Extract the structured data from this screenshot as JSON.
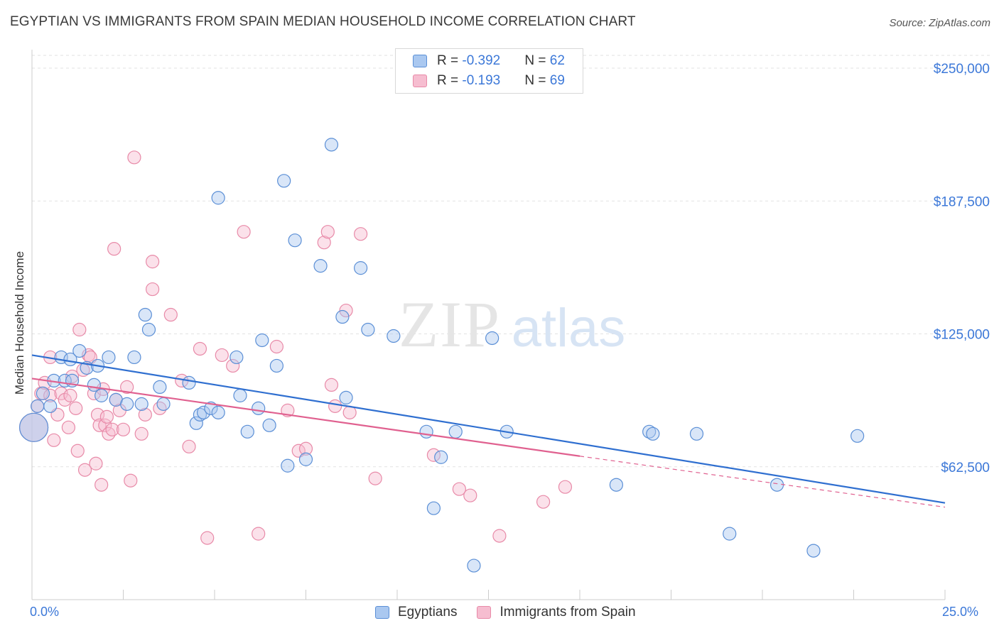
{
  "title": "EGYPTIAN VS IMMIGRANTS FROM SPAIN MEDIAN HOUSEHOLD INCOME CORRELATION CHART",
  "source": "Source: ZipAtlas.com",
  "watermark": {
    "zip": "ZIP",
    "atlas": "atlas"
  },
  "legend": {
    "rows": [
      {
        "r_label": "R = ",
        "r_value": "-0.392",
        "n_label": "N = ",
        "n_value": "62"
      },
      {
        "r_label": "R = ",
        "r_value": "-0.193",
        "n_label": "N = ",
        "n_value": "69"
      }
    ]
  },
  "colors": {
    "blue_fill": "#aac8f0",
    "blue_stroke": "#5b8fd6",
    "blue_line": "#2f6fd0",
    "pink_fill": "#f6bdd0",
    "pink_stroke": "#e88aa8",
    "pink_line": "#e0608f",
    "axis_label": "#3c78d8",
    "grid": "#e2e2e2"
  },
  "chart_data": {
    "type": "scatter",
    "xlabel": "",
    "ylabel": "Median Household Income",
    "xlim": [
      0,
      25
    ],
    "ylim": [
      0,
      262500
    ],
    "x_tick_labels": [
      "0.0%",
      "25.0%"
    ],
    "y_ticks": [
      62500,
      125000,
      187500,
      250000
    ],
    "y_tick_labels": [
      "$62,500",
      "$125,000",
      "$187,500",
      "$250,000"
    ],
    "grid": true,
    "legend_position": "top-center",
    "series": [
      {
        "name": "Egyptians",
        "color": "#5b8fd6",
        "trend": {
          "x0": 0,
          "y0": 115000,
          "x1": 25,
          "y1": 45500,
          "dashed_from": null
        },
        "points": [
          [
            0.15,
            91000
          ],
          [
            0.3,
            97000
          ],
          [
            0.5,
            91000
          ],
          [
            0.6,
            103000
          ],
          [
            0.8,
            114000
          ],
          [
            0.9,
            103000
          ],
          [
            1.05,
            113000
          ],
          [
            1.1,
            103000
          ],
          [
            1.3,
            117000
          ],
          [
            1.5,
            109000
          ],
          [
            1.7,
            101000
          ],
          [
            1.8,
            110000
          ],
          [
            1.9,
            96000
          ],
          [
            2.1,
            114000
          ],
          [
            2.3,
            94000
          ],
          [
            2.6,
            92000
          ],
          [
            2.8,
            114000
          ],
          [
            3.1,
            134000
          ],
          [
            3.0,
            92000
          ],
          [
            3.2,
            127000
          ],
          [
            3.5,
            100000
          ],
          [
            3.6,
            92000
          ],
          [
            4.3,
            102000
          ],
          [
            4.5,
            83000
          ],
          [
            4.6,
            87000
          ],
          [
            4.7,
            88000
          ],
          [
            4.9,
            90000
          ],
          [
            5.1,
            88000
          ],
          [
            5.1,
            189000
          ],
          [
            5.6,
            114000
          ],
          [
            5.7,
            96000
          ],
          [
            5.9,
            79000
          ],
          [
            6.2,
            90000
          ],
          [
            6.3,
            122000
          ],
          [
            6.5,
            82000
          ],
          [
            6.7,
            110000
          ],
          [
            6.9,
            197000
          ],
          [
            7.0,
            63000
          ],
          [
            7.2,
            169000
          ],
          [
            7.5,
            66000
          ],
          [
            7.9,
            157000
          ],
          [
            8.2,
            214000
          ],
          [
            8.5,
            133000
          ],
          [
            8.6,
            95000
          ],
          [
            9.0,
            156000
          ],
          [
            9.2,
            127000
          ],
          [
            9.9,
            124000
          ],
          [
            10.8,
            79000
          ],
          [
            11.0,
            43000
          ],
          [
            11.2,
            67000
          ],
          [
            11.6,
            79000
          ],
          [
            12.1,
            16000
          ],
          [
            12.6,
            123000
          ],
          [
            13.0,
            79000
          ],
          [
            16.0,
            54000
          ],
          [
            16.9,
            79000
          ],
          [
            17.0,
            78000
          ],
          [
            18.2,
            78000
          ],
          [
            19.1,
            31000
          ],
          [
            20.4,
            54000
          ],
          [
            21.4,
            23000
          ],
          [
            22.6,
            77000
          ],
          [
            0.05,
            81000
          ]
        ],
        "point_sizes_note": "one large point near x=0"
      },
      {
        "name": "Immigrants from Spain",
        "color": "#e88aa8",
        "trend": {
          "x0": 0,
          "y0": 104000,
          "x1": 15,
          "y1": 67500,
          "dashed_to_x": 25,
          "dashed_to_y": 43500
        },
        "points": [
          [
            0.15,
            91000
          ],
          [
            0.25,
            97000
          ],
          [
            0.35,
            102000
          ],
          [
            0.5,
            96000
          ],
          [
            0.5,
            114000
          ],
          [
            0.6,
            75000
          ],
          [
            0.7,
            87000
          ],
          [
            0.8,
            97000
          ],
          [
            0.9,
            94000
          ],
          [
            1.0,
            81000
          ],
          [
            1.05,
            96000
          ],
          [
            1.1,
            105000
          ],
          [
            1.2,
            90000
          ],
          [
            1.25,
            70000
          ],
          [
            1.3,
            127000
          ],
          [
            1.4,
            108000
          ],
          [
            1.45,
            61000
          ],
          [
            1.55,
            115000
          ],
          [
            1.6,
            114000
          ],
          [
            1.7,
            97000
          ],
          [
            1.75,
            64000
          ],
          [
            1.8,
            87000
          ],
          [
            1.85,
            82000
          ],
          [
            1.9,
            54000
          ],
          [
            1.95,
            99000
          ],
          [
            2.0,
            82000
          ],
          [
            2.05,
            86000
          ],
          [
            2.1,
            78000
          ],
          [
            2.2,
            80000
          ],
          [
            2.25,
            165000
          ],
          [
            2.3,
            94000
          ],
          [
            2.4,
            89000
          ],
          [
            2.5,
            80000
          ],
          [
            2.6,
            100000
          ],
          [
            2.7,
            56000
          ],
          [
            2.8,
            208000
          ],
          [
            3.0,
            78000
          ],
          [
            3.1,
            87000
          ],
          [
            3.3,
            159000
          ],
          [
            3.3,
            146000
          ],
          [
            3.5,
            90000
          ],
          [
            3.8,
            134000
          ],
          [
            4.1,
            103000
          ],
          [
            4.3,
            72000
          ],
          [
            4.6,
            118000
          ],
          [
            4.8,
            29000
          ],
          [
            5.2,
            115000
          ],
          [
            5.5,
            110000
          ],
          [
            5.8,
            173000
          ],
          [
            6.2,
            31000
          ],
          [
            6.7,
            119000
          ],
          [
            7.0,
            89000
          ],
          [
            7.3,
            70000
          ],
          [
            7.5,
            71000
          ],
          [
            8.0,
            168000
          ],
          [
            8.1,
            173000
          ],
          [
            8.2,
            101000
          ],
          [
            8.3,
            91000
          ],
          [
            8.6,
            136000
          ],
          [
            8.7,
            88000
          ],
          [
            9.0,
            172000
          ],
          [
            9.4,
            57000
          ],
          [
            11.0,
            68000
          ],
          [
            11.7,
            52000
          ],
          [
            12.0,
            49000
          ],
          [
            12.8,
            30000
          ],
          [
            14.0,
            46000
          ],
          [
            14.6,
            53000
          ],
          [
            0.05,
            81000
          ]
        ]
      }
    ]
  },
  "bottom_legend": [
    "Egyptians",
    "Immigrants from Spain"
  ]
}
